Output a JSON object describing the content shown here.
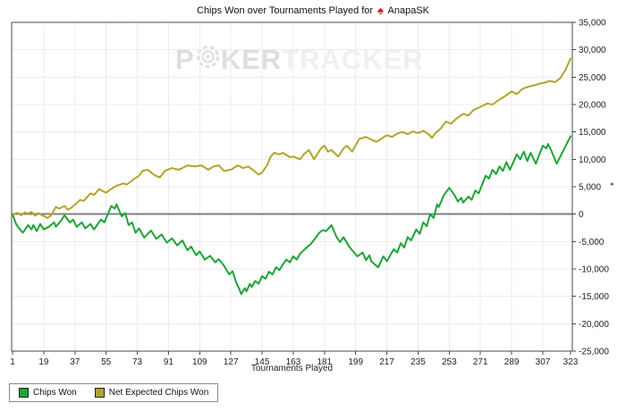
{
  "title": {
    "prefix": "Chips Won over Tournaments Played for",
    "player": "AnapaSK",
    "spade_icon": "♠",
    "spade_color": "#d8112b"
  },
  "watermark": {
    "part1": "P",
    "part2": "KER",
    "part3": "TRACKER",
    "chip_icon": "poker-chip"
  },
  "colors": {
    "chips_won_line": "#1fa337",
    "net_expected_line": "#b0a52a",
    "zero_line": "#7f7f7f",
    "axis": "#4a4a4a",
    "grid": "#ececef",
    "tick_text": "#222222"
  },
  "chart_data": {
    "type": "line",
    "title": "Chips Won over Tournaments Played for AnapaSK",
    "xlabel": "Tournaments Played",
    "ylabel": "*",
    "xlim": [
      1,
      323
    ],
    "ylim": [
      -25000,
      35000
    ],
    "grid": true,
    "legend_position": "bottom-left",
    "x_ticks": [
      1,
      19,
      37,
      55,
      73,
      91,
      109,
      127,
      145,
      163,
      181,
      199,
      217,
      235,
      253,
      271,
      289,
      307,
      323
    ],
    "y_ticks": [
      35000,
      30000,
      25000,
      20000,
      15000,
      10000,
      5000,
      0,
      -5000,
      -10000,
      -15000,
      -20000,
      -25000
    ],
    "y_tick_labels": [
      "35,000",
      "30,000",
      "25,000",
      "20,000",
      "15,000",
      "10,000",
      "5,000",
      "0",
      "-5,000",
      "-10,000",
      "-15,000",
      "-20,000",
      "-25,000"
    ],
    "series": [
      {
        "name": "Chips Won",
        "color": "#1fa337",
        "points": [
          [
            1,
            0
          ],
          [
            3,
            -1800
          ],
          [
            5,
            -2700
          ],
          [
            7,
            -3400
          ],
          [
            10,
            -2000
          ],
          [
            12,
            -2800
          ],
          [
            13,
            -2000
          ],
          [
            15,
            -3100
          ],
          [
            17,
            -1800
          ],
          [
            19,
            -2800
          ],
          [
            22,
            -2300
          ],
          [
            25,
            -1500
          ],
          [
            26,
            -2300
          ],
          [
            29,
            -1200
          ],
          [
            31,
            -200
          ],
          [
            34,
            -1500
          ],
          [
            36,
            -1000
          ],
          [
            38,
            -2300
          ],
          [
            41,
            -1500
          ],
          [
            43,
            -2600
          ],
          [
            46,
            -1800
          ],
          [
            48,
            -2800
          ],
          [
            52,
            -1000
          ],
          [
            54,
            -1500
          ],
          [
            58,
            1500
          ],
          [
            60,
            1000
          ],
          [
            61,
            1800
          ],
          [
            64,
            -400
          ],
          [
            66,
            200
          ],
          [
            68,
            -2000
          ],
          [
            70,
            -1500
          ],
          [
            72,
            -3400
          ],
          [
            74,
            -2600
          ],
          [
            77,
            -4300
          ],
          [
            79,
            -3600
          ],
          [
            81,
            -3000
          ],
          [
            84,
            -4500
          ],
          [
            87,
            -3700
          ],
          [
            90,
            -5200
          ],
          [
            93,
            -4400
          ],
          [
            96,
            -5700
          ],
          [
            99,
            -4800
          ],
          [
            102,
            -6600
          ],
          [
            104,
            -5900
          ],
          [
            107,
            -7500
          ],
          [
            109,
            -6800
          ],
          [
            112,
            -8300
          ],
          [
            115,
            -7600
          ],
          [
            118,
            -8800
          ],
          [
            120,
            -8200
          ],
          [
            123,
            -9400
          ],
          [
            126,
            -11000
          ],
          [
            128,
            -10400
          ],
          [
            130,
            -12400
          ],
          [
            132,
            -13800
          ],
          [
            133,
            -14600
          ],
          [
            135,
            -13500
          ],
          [
            136,
            -14100
          ],
          [
            138,
            -12700
          ],
          [
            139,
            -13300
          ],
          [
            141,
            -12200
          ],
          [
            143,
            -12700
          ],
          [
            145,
            -11300
          ],
          [
            147,
            -11800
          ],
          [
            149,
            -10500
          ],
          [
            151,
            -11000
          ],
          [
            153,
            -9700
          ],
          [
            155,
            -10200
          ],
          [
            157,
            -9200
          ],
          [
            159,
            -8300
          ],
          [
            161,
            -8800
          ],
          [
            163,
            -7700
          ],
          [
            165,
            -8300
          ],
          [
            167,
            -7200
          ],
          [
            170,
            -6300
          ],
          [
            173,
            -5500
          ],
          [
            176,
            -4300
          ],
          [
            178,
            -3400
          ],
          [
            180,
            -2900
          ],
          [
            182,
            -3100
          ],
          [
            185,
            -2000
          ],
          [
            188,
            -4200
          ],
          [
            190,
            -5100
          ],
          [
            192,
            -4200
          ],
          [
            195,
            -5800
          ],
          [
            197,
            -6600
          ],
          [
            200,
            -7700
          ],
          [
            203,
            -7000
          ],
          [
            205,
            -8400
          ],
          [
            207,
            -7500
          ],
          [
            208,
            -8600
          ],
          [
            212,
            -9700
          ],
          [
            215,
            -7700
          ],
          [
            217,
            -8600
          ],
          [
            221,
            -6400
          ],
          [
            223,
            -7000
          ],
          [
            225,
            -5300
          ],
          [
            227,
            -6100
          ],
          [
            229,
            -4200
          ],
          [
            231,
            -4800
          ],
          [
            234,
            -2800
          ],
          [
            236,
            -3600
          ],
          [
            238,
            -1500
          ],
          [
            240,
            -2200
          ],
          [
            242,
            0
          ],
          [
            244,
            -700
          ],
          [
            246,
            1800
          ],
          [
            247,
            1300
          ],
          [
            250,
            3500
          ],
          [
            253,
            4800
          ],
          [
            256,
            3500
          ],
          [
            258,
            2300
          ],
          [
            260,
            3000
          ],
          [
            261,
            2100
          ],
          [
            264,
            3200
          ],
          [
            266,
            2600
          ],
          [
            268,
            4300
          ],
          [
            270,
            3800
          ],
          [
            274,
            7000
          ],
          [
            276,
            6500
          ],
          [
            278,
            8100
          ],
          [
            280,
            7300
          ],
          [
            282,
            8700
          ],
          [
            284,
            7900
          ],
          [
            286,
            9500
          ],
          [
            288,
            8100
          ],
          [
            292,
            10900
          ],
          [
            294,
            10000
          ],
          [
            296,
            11400
          ],
          [
            298,
            9700
          ],
          [
            300,
            11200
          ],
          [
            303,
            9200
          ],
          [
            307,
            12500
          ],
          [
            309,
            12000
          ],
          [
            310,
            12800
          ],
          [
            312,
            11500
          ],
          [
            315,
            9200
          ],
          [
            319,
            11700
          ],
          [
            323,
            14200
          ]
        ]
      },
      {
        "name": "Net Expected Chips Won",
        "color": "#b0a52a",
        "points": [
          [
            1,
            0
          ],
          [
            4,
            200
          ],
          [
            6,
            -200
          ],
          [
            8,
            300
          ],
          [
            10,
            100
          ],
          [
            12,
            400
          ],
          [
            14,
            -300
          ],
          [
            16,
            200
          ],
          [
            18,
            -200
          ],
          [
            20,
            -500
          ],
          [
            21,
            -700
          ],
          [
            23,
            -300
          ],
          [
            26,
            1300
          ],
          [
            28,
            1000
          ],
          [
            31,
            1500
          ],
          [
            33,
            800
          ],
          [
            35,
            1200
          ],
          [
            38,
            2000
          ],
          [
            40,
            2600
          ],
          [
            42,
            2400
          ],
          [
            44,
            3100
          ],
          [
            46,
            3800
          ],
          [
            48,
            3500
          ],
          [
            51,
            4600
          ],
          [
            53,
            4200
          ],
          [
            55,
            3900
          ],
          [
            57,
            4400
          ],
          [
            60,
            5000
          ],
          [
            62,
            5300
          ],
          [
            65,
            5600
          ],
          [
            67,
            5400
          ],
          [
            69,
            5900
          ],
          [
            71,
            6400
          ],
          [
            74,
            7000
          ],
          [
            76,
            7900
          ],
          [
            79,
            8100
          ],
          [
            81,
            7600
          ],
          [
            83,
            7100
          ],
          [
            86,
            6700
          ],
          [
            89,
            7900
          ],
          [
            93,
            8400
          ],
          [
            97,
            8100
          ],
          [
            102,
            8900
          ],
          [
            106,
            8700
          ],
          [
            110,
            8900
          ],
          [
            114,
            8100
          ],
          [
            117,
            8700
          ],
          [
            120,
            8900
          ],
          [
            123,
            7900
          ],
          [
            127,
            8100
          ],
          [
            131,
            8900
          ],
          [
            134,
            8400
          ],
          [
            137,
            8700
          ],
          [
            140,
            8000
          ],
          [
            143,
            7200
          ],
          [
            145,
            7600
          ],
          [
            148,
            9000
          ],
          [
            150,
            10500
          ],
          [
            152,
            11200
          ],
          [
            155,
            10900
          ],
          [
            157,
            11200
          ],
          [
            161,
            10400
          ],
          [
            163,
            10500
          ],
          [
            167,
            10000
          ],
          [
            169,
            10900
          ],
          [
            172,
            11700
          ],
          [
            175,
            10000
          ],
          [
            179,
            12000
          ],
          [
            181,
            12500
          ],
          [
            183,
            11400
          ],
          [
            185,
            11700
          ],
          [
            189,
            10500
          ],
          [
            192,
            12000
          ],
          [
            194,
            12500
          ],
          [
            197,
            11400
          ],
          [
            201,
            13700
          ],
          [
            205,
            14100
          ],
          [
            208,
            13600
          ],
          [
            211,
            13200
          ],
          [
            214,
            13800
          ],
          [
            217,
            14400
          ],
          [
            220,
            14100
          ],
          [
            223,
            14700
          ],
          [
            226,
            15000
          ],
          [
            229,
            14600
          ],
          [
            232,
            15100
          ],
          [
            235,
            14800
          ],
          [
            238,
            15200
          ],
          [
            241,
            14600
          ],
          [
            243,
            13900
          ],
          [
            245,
            14800
          ],
          [
            248,
            15600
          ],
          [
            251,
            16900
          ],
          [
            254,
            16500
          ],
          [
            257,
            17400
          ],
          [
            261,
            18300
          ],
          [
            264,
            18000
          ],
          [
            267,
            19000
          ],
          [
            271,
            19600
          ],
          [
            275,
            20200
          ],
          [
            278,
            20000
          ],
          [
            281,
            20700
          ],
          [
            285,
            21500
          ],
          [
            289,
            22400
          ],
          [
            292,
            21900
          ],
          [
            295,
            22800
          ],
          [
            298,
            23200
          ],
          [
            302,
            23500
          ],
          [
            305,
            23800
          ],
          [
            308,
            24000
          ],
          [
            311,
            24300
          ],
          [
            314,
            24100
          ],
          [
            317,
            24800
          ],
          [
            320,
            26300
          ],
          [
            323,
            28400
          ]
        ]
      }
    ]
  }
}
